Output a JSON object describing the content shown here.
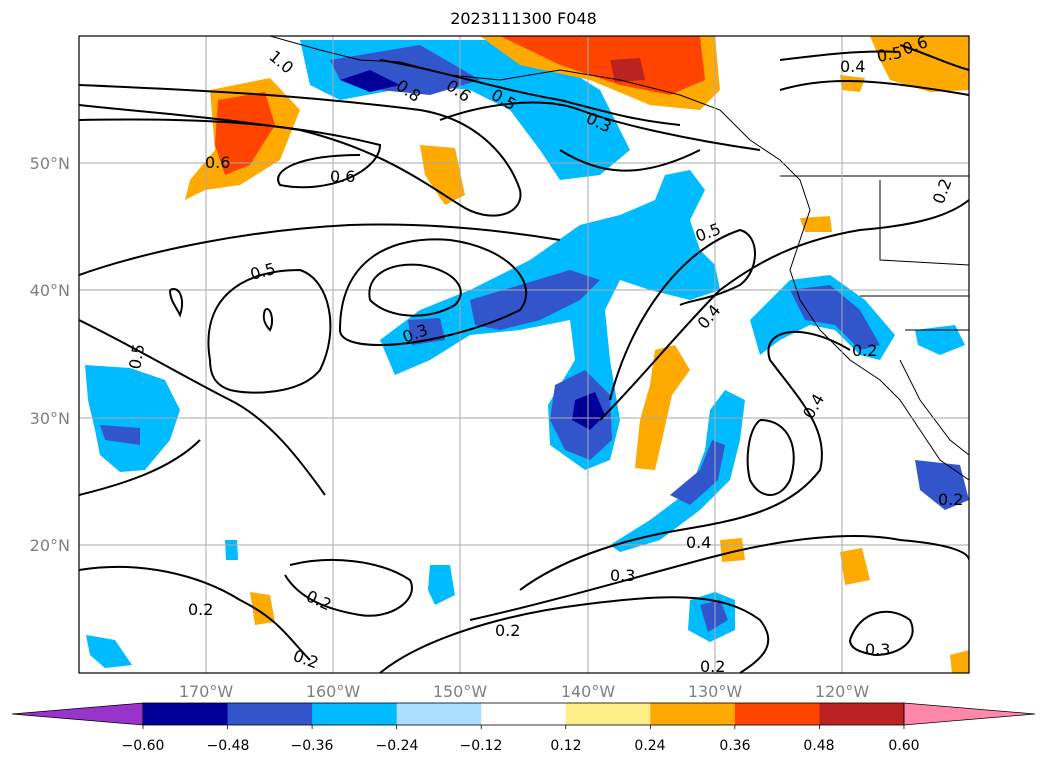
{
  "title": "2023111300 F048",
  "map": {
    "lon_ticks": [
      "170°W",
      "160°W",
      "150°W",
      "140°W",
      "130°W",
      "120°W"
    ],
    "lat_ticks": [
      "50°N",
      "40°N",
      "30°N",
      "20°N"
    ],
    "contour_labels": [
      "0.5",
      "0.6",
      "0.5",
      "0.3",
      "0.5",
      "0.4",
      "0.5",
      "0.4",
      "0.3",
      "0.4",
      "0.3",
      "0.2",
      "0.2",
      "0.2",
      "0.2",
      "0.3",
      "0.2",
      "0.2",
      "0.2",
      "0.2",
      "0.6",
      "0.4",
      "0.5",
      "0.6",
      "1.0",
      "0.8",
      "0.6"
    ]
  },
  "colorbar": {
    "ticks": [
      "−0.60",
      "−0.48",
      "−0.36",
      "−0.24",
      "−0.12",
      "0.12",
      "0.24",
      "0.36",
      "0.48",
      "0.60"
    ],
    "colors": [
      "#9933cc",
      "#000099",
      "#3355cc",
      "#00bbff",
      "#aaddff",
      "#ffffff",
      "#ffee88",
      "#ffaa00",
      "#ff4400",
      "#bb2222",
      "#ff88aa"
    ]
  }
}
